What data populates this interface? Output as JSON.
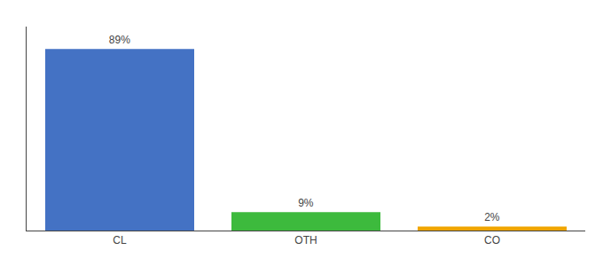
{
  "chart_data": {
    "type": "bar",
    "categories": [
      "CL",
      "OTH",
      "CO"
    ],
    "values": [
      89,
      9,
      2
    ],
    "value_labels": [
      "89%",
      "9%",
      "2%"
    ],
    "colors": [
      "#4472c4",
      "#3dba3d",
      "#f0a500"
    ],
    "ylim": [
      0,
      100
    ],
    "data_labels": true,
    "tick_labels": "x",
    "grid": false
  }
}
